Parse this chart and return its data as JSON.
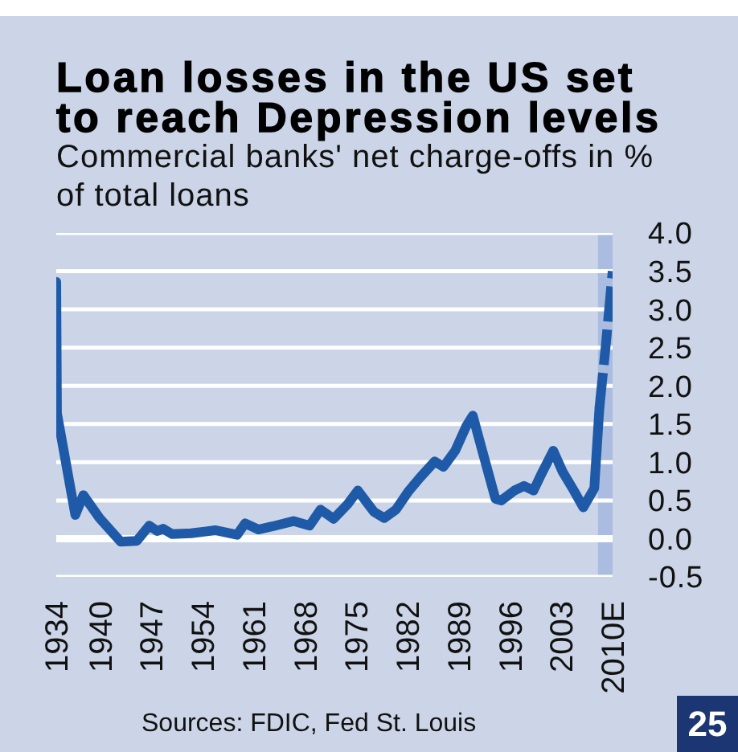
{
  "chart_data": {
    "type": "line",
    "title": "Loan losses in the US set to reach Depression levels",
    "subtitle": "Commercial banks' net charge-offs in % of total loans",
    "annotations": [
      "Sources: FDIC, Fed St. Louis",
      "25"
    ],
    "series": [
      {
        "color": "#1f5aa8",
        "x": [
          1934,
          1934.1,
          1936.6,
          1937.7,
          1939.9,
          1942.8,
          1945,
          1946.7,
          1947.8,
          1948.6,
          1949.8,
          1952.4,
          1955.7,
          1958.7,
          1959.8,
          1961.6,
          1963.5,
          1966.4,
          1968.6,
          1970.1,
          1971.9,
          1973.8,
          1975.2,
          1977.4,
          1978.8,
          1980.4,
          1982.2,
          1983.7,
          1985.7,
          1986.9,
          1988.5,
          1990,
          1990.9,
          1992.2,
          1994,
          1994.8,
          1996.6,
          1997.9,
          1999.2,
          2000.4,
          2001.9,
          2003.2,
          2004.7,
          2006,
          2007.5,
          2008.2
        ],
        "values": [
          3.36,
          1.64,
          0.31,
          0.57,
          0.27,
          -0.04,
          -0.03,
          0.17,
          0.1,
          0.13,
          0.06,
          0.07,
          0.11,
          0.05,
          0.2,
          0.12,
          0.16,
          0.23,
          0.17,
          0.38,
          0.26,
          0.45,
          0.63,
          0.35,
          0.27,
          0.38,
          0.63,
          0.8,
          1.01,
          0.94,
          1.15,
          1.47,
          1.61,
          1.15,
          0.52,
          0.5,
          0.63,
          0.69,
          0.63,
          0.87,
          1.15,
          0.87,
          0.63,
          0.41,
          0.66,
          1.71
        ]
      },
      {
        "color": "#1f5aa8",
        "line_style": "dashed",
        "x": [
          2008.2,
          2009.1,
          2010
        ],
        "values": [
          1.71,
          2.56,
          3.5
        ]
      }
    ],
    "xlim": [
      1934,
      2010
    ],
    "xticks": [
      1934,
      1940,
      1947,
      1954,
      1961,
      1968,
      1975,
      1982,
      1989,
      1996,
      2003,
      {
        "value": 2010,
        "label": "2010E"
      }
    ],
    "ylim": [
      -0.5,
      4
    ],
    "yticks": [
      {
        "value": -0.5,
        "label": "-0.5"
      },
      {
        "value": 0,
        "label": "0.0"
      },
      {
        "value": 0.5,
        "label": "0.5"
      },
      {
        "value": 1,
        "label": "1.0"
      },
      {
        "value": 1.5,
        "label": "1.5"
      },
      {
        "value": 2,
        "label": "2.0"
      },
      {
        "value": 2.5,
        "label": "2.5"
      },
      {
        "value": 3,
        "label": "3.0"
      },
      {
        "value": 3.5,
        "label": "3.5"
      },
      {
        "value": 4,
        "label": "4.0"
      }
    ],
    "grid": "y",
    "line_style": "solid",
    "bands": [
      {
        "axis": "x",
        "from": 2008,
        "to": 2010,
        "color": "#aabde0"
      }
    ]
  }
}
